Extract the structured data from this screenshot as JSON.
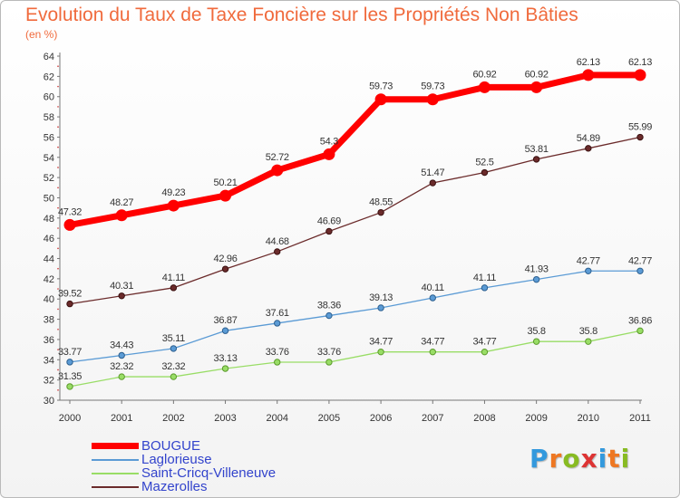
{
  "chart_data": {
    "type": "line",
    "title": "Evolution du Taux de Taxe Foncière sur les Propriétés Non Bâties",
    "subtitle": "(en %)",
    "x": [
      "2000",
      "2001",
      "2002",
      "2003",
      "2004",
      "2005",
      "2006",
      "2007",
      "2008",
      "2009",
      "2010",
      "2011"
    ],
    "ylim": [
      30,
      64
    ],
    "yticks": [
      30,
      32,
      34,
      36,
      38,
      40,
      42,
      44,
      46,
      48,
      50,
      52,
      54,
      56,
      58,
      60,
      62,
      64
    ],
    "grid": false,
    "legend_placement": "bottom-left",
    "series": [
      {
        "name": "BOUGUE",
        "color": "#ff0000",
        "values": [
          47.32,
          48.27,
          49.23,
          50.21,
          52.72,
          54.3,
          59.73,
          59.73,
          60.92,
          60.92,
          62.13,
          62.13
        ],
        "labels": [
          "47.32",
          "48.27",
          "49.23",
          "50.21",
          "52.72",
          "54.3",
          "59.73",
          "59.73",
          "60.92",
          "60.92",
          "62.13",
          "62.13"
        ]
      },
      {
        "name": "Laglorieuse",
        "color": "#5b9bd5",
        "values": [
          33.77,
          34.43,
          35.11,
          36.87,
          37.61,
          38.36,
          39.13,
          40.11,
          41.11,
          41.93,
          42.77,
          42.77
        ],
        "labels": [
          "33.77",
          "34.43",
          "35.11",
          "36.87",
          "37.61",
          "38.36",
          "39.13",
          "40.11",
          "41.11",
          "41.93",
          "42.77",
          "42.77"
        ]
      },
      {
        "name": "Saint-Cricq-Villeneuve",
        "color": "#99dd66",
        "values": [
          31.35,
          32.32,
          32.32,
          33.13,
          33.76,
          33.76,
          34.77,
          34.77,
          34.77,
          35.8,
          35.8,
          36.86
        ],
        "labels": [
          "31.35",
          "32.32",
          "32.32",
          "33.13",
          "33.76",
          "33.76",
          "34.77",
          "34.77",
          "34.77",
          "35.8",
          "35.8",
          "36.86"
        ]
      },
      {
        "name": "Mazerolles",
        "color": "#6b2b2b",
        "values": [
          39.52,
          40.31,
          41.11,
          42.96,
          44.68,
          46.69,
          48.55,
          51.47,
          52.5,
          53.81,
          54.89,
          55.99
        ],
        "labels": [
          "39.52",
          "40.31",
          "41.11",
          "42.96",
          "44.68",
          "46.69",
          "48.55",
          "51.47",
          "52.5",
          "53.81",
          "54.89",
          "55.99"
        ]
      }
    ]
  },
  "logo": {
    "letters": [
      "P",
      "r",
      "o",
      "x",
      "i",
      "t",
      "i"
    ],
    "colors": [
      "#3399dd",
      "#ee7722",
      "#88bb22",
      "#dd3333",
      "#3399dd",
      "#ee7722",
      "#88bb22"
    ]
  }
}
